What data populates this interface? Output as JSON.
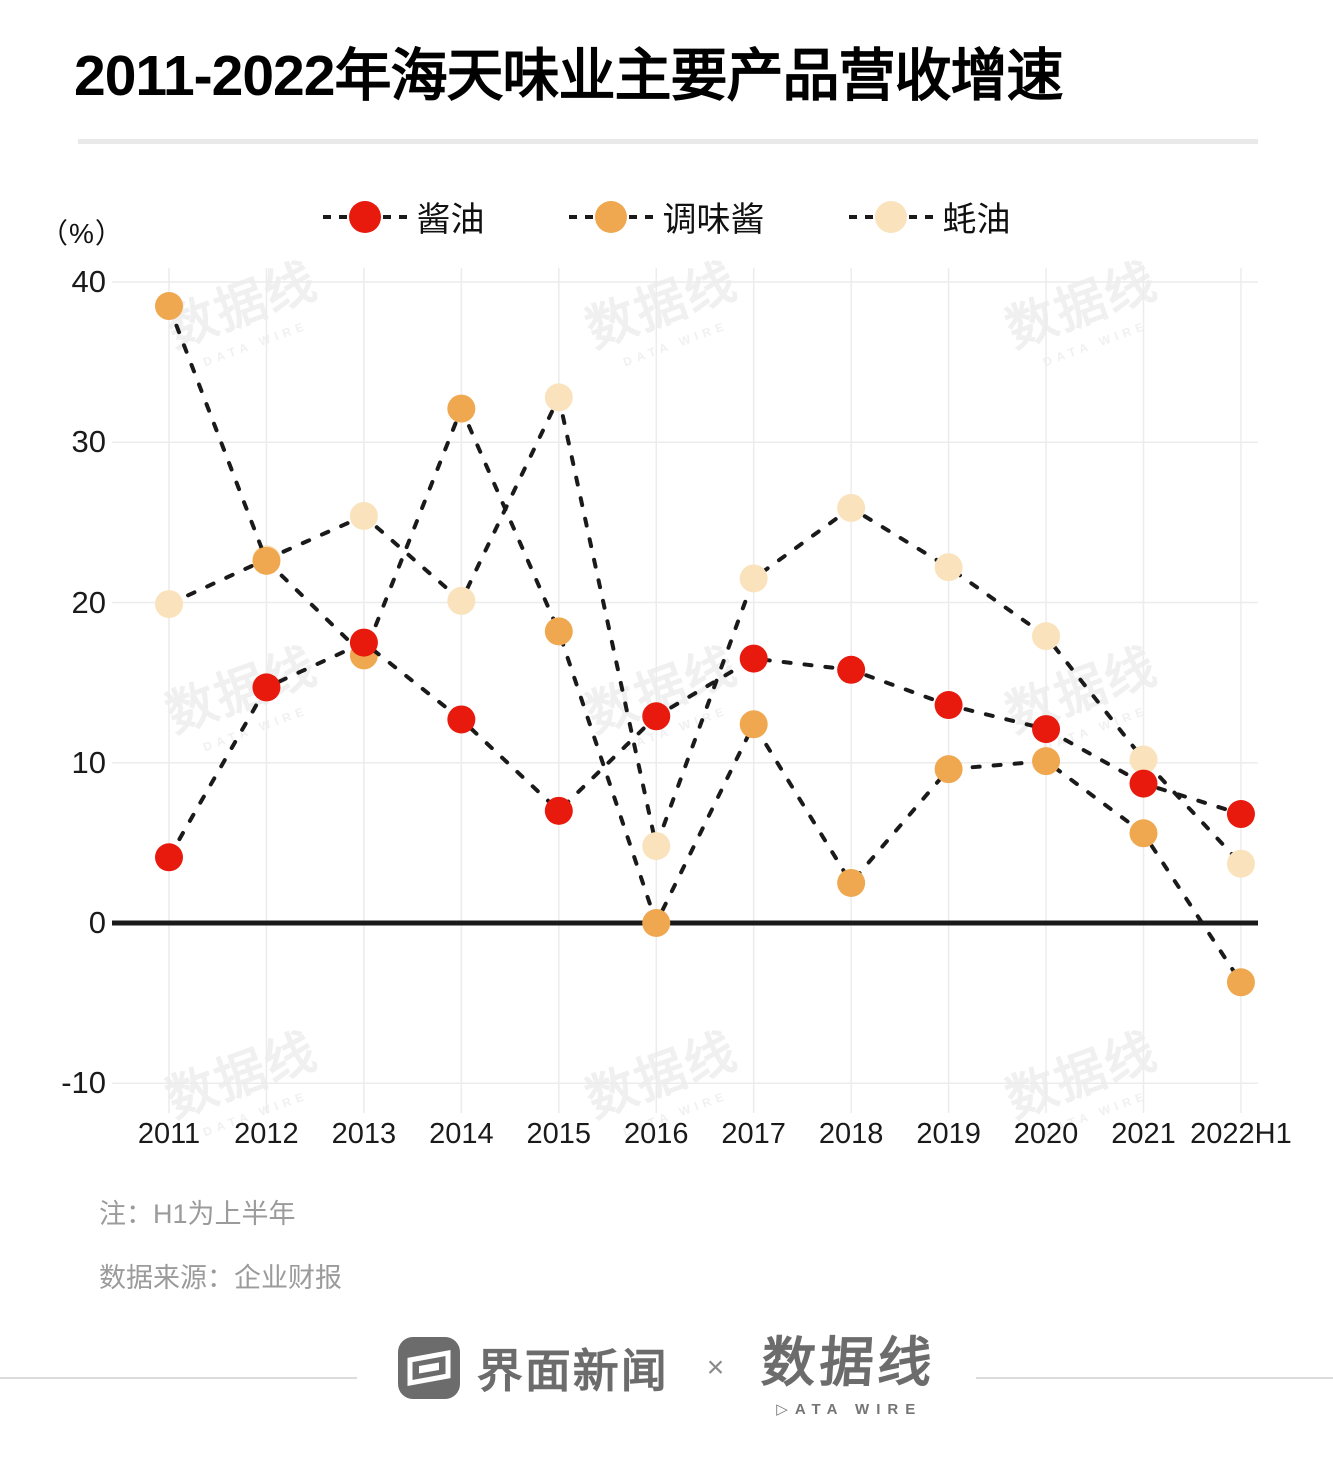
{
  "header": {
    "title": "2011-2022年海天味业主要产品营收增速"
  },
  "chart_data": {
    "type": "line",
    "style": "dashed lines with colored dot markers",
    "title": "2011-2022年海天味业主要产品营收增速",
    "unit_label": "（%）",
    "x": [
      "2011",
      "2012",
      "2013",
      "2014",
      "2015",
      "2016",
      "2017",
      "2018",
      "2019",
      "2020",
      "2021",
      "2022H1"
    ],
    "series": [
      {
        "name": "酱油",
        "color": "#e8190d",
        "values": [
          4.1,
          14.7,
          17.5,
          12.7,
          7.0,
          12.9,
          16.5,
          15.8,
          13.6,
          12.1,
          8.7,
          6.8
        ]
      },
      {
        "name": "调味酱",
        "color": "#efa850",
        "values": [
          38.5,
          22.6,
          16.7,
          32.1,
          18.2,
          0.0,
          12.4,
          2.5,
          9.6,
          10.1,
          5.6,
          -3.7
        ]
      },
      {
        "name": "蚝油",
        "color": "#fae3bc",
        "values": [
          19.9,
          22.7,
          25.4,
          20.1,
          32.8,
          4.8,
          21.5,
          25.9,
          22.2,
          17.9,
          10.2,
          3.7
        ]
      }
    ],
    "ytick_values": [
      40,
      30,
      20,
      10,
      0,
      -10
    ],
    "ytick_labels": [
      "40",
      "30",
      "20",
      "10",
      "0",
      "-10"
    ],
    "ylim": [
      -15,
      42
    ],
    "grid": true,
    "zero_line": true,
    "line_color": "#1a1a1a",
    "legend_position": "top"
  },
  "notes": {
    "line1": "注：H1为上半年",
    "line2": "数据来源：企业财报"
  },
  "footer": {
    "jiemian_label": "界面新闻",
    "separator": "×",
    "datawire_label": "数据线",
    "datawire_caption": "DATA WIRE"
  },
  "watermark": {
    "text": "数据线",
    "caption": "DATA WIRE"
  }
}
